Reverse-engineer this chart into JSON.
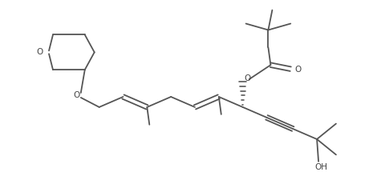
{
  "line_color": "#555555",
  "bg_color": "#ffffff",
  "lw": 1.3,
  "text_color": "#444444",
  "fontsize": 7.5,
  "figsize": [
    4.75,
    2.4
  ],
  "dpi": 100,
  "xlim": [
    0,
    47.5
  ],
  "ylim": [
    0,
    24.0
  ]
}
